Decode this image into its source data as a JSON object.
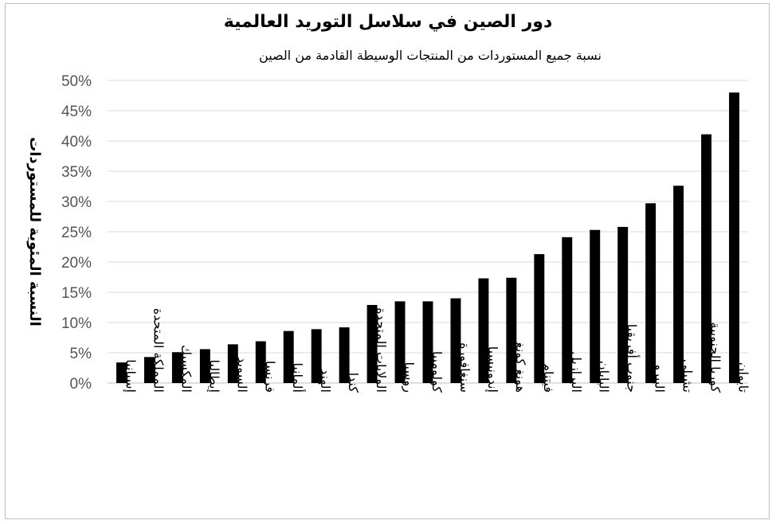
{
  "chart_data": {
    "type": "bar",
    "title": "دور الصين في سلاسل التوريد العالمية",
    "subtitle": "نسبة جميع المستوردات من المنتجات الوسيطة القادمة من الصين",
    "ylabel": "النسبة المئوية للمستوردات",
    "xlabel": "",
    "ylim": [
      0,
      50
    ],
    "yticks": [
      "0%",
      "5%",
      "10%",
      "15%",
      "20%",
      "25%",
      "30%",
      "35%",
      "40%",
      "45%",
      "50%"
    ],
    "grid": true,
    "categories": [
      "إسبانيا",
      "المملكة المتحدة",
      "المكسيك",
      "إيطاليا",
      "السويد",
      "فرنسا",
      "ألمانيا",
      "الهند",
      "كندا",
      "الولايات المتحدة",
      "روسيا",
      "كولومبيا",
      "سنغافورة",
      "إندونيسيا",
      "هونغ كونغ",
      "فيتنام",
      "البرازيل",
      "اليابان",
      "جنوب أفريقيا",
      "البيرو",
      "تشيلي",
      "كوريا الجنوبية",
      "تايوان"
    ],
    "values": [
      3.4,
      4.3,
      5.1,
      5.6,
      6.4,
      6.9,
      8.6,
      8.9,
      9.2,
      12.9,
      13.5,
      13.5,
      14.0,
      17.3,
      17.4,
      21.3,
      24.1,
      25.3,
      25.8,
      29.7,
      32.6,
      41.1,
      48.0
    ],
    "colors": {
      "bar": "#000000",
      "grid": "#d9d9d9"
    }
  }
}
